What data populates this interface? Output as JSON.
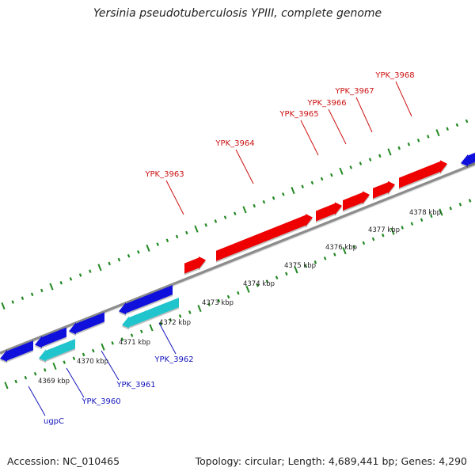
{
  "title": "Yersinia pseudotuberculosis YPIII, complete genome",
  "footer": {
    "accession": "Accession: NC_010465",
    "summary": "Topology: circular; Length: 4,689,441 bp; Genes: 4,290"
  },
  "colors": {
    "forward_gene": "#ee0000",
    "reverse_gene": "#1010dd",
    "cds_track": "#20c4cc",
    "backbone": "#8c8c8c",
    "tick_marks": "#228822",
    "forward_label": "#cc1111",
    "reverse_label": "#1515bb"
  },
  "scale_labels": [
    "4369 kbp",
    "4370 kbp",
    "4371 kbp",
    "4372 kbp",
    "4373 kbp",
    "4374 kbp",
    "4375 kbp",
    "4376 kbp",
    "4377 kbp",
    "4378 kbp"
  ],
  "forward_genes": [
    {
      "name": "YPK_3963"
    },
    {
      "name": "YPK_3964"
    },
    {
      "name": "YPK_3965"
    },
    {
      "name": "YPK_3966"
    },
    {
      "name": "YPK_3967"
    },
    {
      "name": "YPK_3968"
    }
  ],
  "reverse_genes": [
    {
      "name": "ugpC"
    },
    {
      "name": "YPK_3960"
    },
    {
      "name": "YPK_3961"
    },
    {
      "name": "YPK_3962"
    }
  ]
}
